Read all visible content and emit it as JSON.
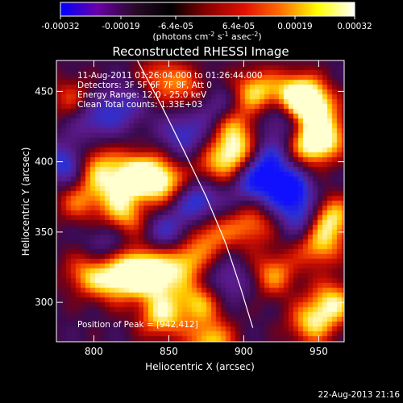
{
  "colorbar": {
    "ticks": [
      "-0.00032",
      "-0.00019",
      "-6.4e-05",
      "6.4e-05",
      "0.00019",
      "0.00032"
    ],
    "stops": [
      "#0000ff",
      "#6a00aa",
      "#2a0a2a",
      "#000000",
      "#8a0000",
      "#e01000",
      "#ff7000",
      "#ffff00",
      "#ffffff"
    ]
  },
  "chart_data": {
    "type": "heatmap",
    "title": "Reconstructed RHESSI Image",
    "xlabel": "Heliocentric X (arcsec)",
    "ylabel": "Heliocentric Y (arcsec)",
    "xlim": [
      775,
      967
    ],
    "ylim": [
      272,
      472
    ],
    "xticks": [
      800,
      850,
      900,
      950
    ],
    "yticks": [
      300,
      350,
      400,
      450
    ],
    "colorbar_range": [
      -0.00032,
      0.00032
    ],
    "peak": [
      942,
      412
    ],
    "limb_curve": [
      [
        829,
        472
      ],
      [
        845,
        440
      ],
      [
        860,
        408
      ],
      [
        875,
        375
      ],
      [
        888,
        342
      ],
      [
        898,
        310
      ],
      [
        906,
        282
      ]
    ],
    "blobs": [
      {
        "x": 800,
        "y": 397,
        "v": 0.8
      },
      {
        "x": 815,
        "y": 380,
        "v": 0.6
      },
      {
        "x": 830,
        "y": 392,
        "v": 0.9
      },
      {
        "x": 846,
        "y": 385,
        "v": 0.85
      },
      {
        "x": 820,
        "y": 360,
        "v": 0.7
      },
      {
        "x": 830,
        "y": 325,
        "v": 0.9
      },
      {
        "x": 815,
        "y": 315,
        "v": 0.8
      },
      {
        "x": 795,
        "y": 320,
        "v": 0.6
      },
      {
        "x": 843,
        "y": 315,
        "v": 0.7
      },
      {
        "x": 860,
        "y": 330,
        "v": 0.75
      },
      {
        "x": 845,
        "y": 290,
        "v": 0.8
      },
      {
        "x": 870,
        "y": 300,
        "v": 0.7
      },
      {
        "x": 878,
        "y": 348,
        "v": 0.6
      },
      {
        "x": 895,
        "y": 405,
        "v": 0.9
      },
      {
        "x": 893,
        "y": 425,
        "v": 0.6
      },
      {
        "x": 908,
        "y": 450,
        "v": 0.8
      },
      {
        "x": 935,
        "y": 448,
        "v": 0.85
      },
      {
        "x": 945,
        "y": 440,
        "v": 1.0
      },
      {
        "x": 956,
        "y": 420,
        "v": 0.6
      },
      {
        "x": 945,
        "y": 412,
        "v": 0.9
      },
      {
        "x": 957,
        "y": 360,
        "v": 0.95
      },
      {
        "x": 950,
        "y": 340,
        "v": 0.7
      },
      {
        "x": 960,
        "y": 300,
        "v": 0.8
      },
      {
        "x": 945,
        "y": 285,
        "v": 0.75
      },
      {
        "x": 920,
        "y": 320,
        "v": 0.65
      },
      {
        "x": 905,
        "y": 355,
        "v": 0.6
      },
      {
        "x": 878,
        "y": 272,
        "v": 0.8
      },
      {
        "x": 865,
        "y": 450,
        "v": 0.5
      },
      {
        "x": 845,
        "y": 460,
        "v": 0.55
      },
      {
        "x": 785,
        "y": 445,
        "v": 0.45
      },
      {
        "x": 790,
        "y": 372,
        "v": 0.55
      },
      {
        "x": 880,
        "y": 395,
        "v": 0.45
      },
      {
        "x": 930,
        "y": 380,
        "v": -0.9
      },
      {
        "x": 915,
        "y": 400,
        "v": -0.7
      },
      {
        "x": 940,
        "y": 360,
        "v": -0.65
      },
      {
        "x": 905,
        "y": 385,
        "v": -0.6
      },
      {
        "x": 870,
        "y": 372,
        "v": -0.7
      },
      {
        "x": 860,
        "y": 420,
        "v": -0.55
      },
      {
        "x": 880,
        "y": 440,
        "v": -0.5
      },
      {
        "x": 783,
        "y": 398,
        "v": -0.8
      },
      {
        "x": 800,
        "y": 430,
        "v": -0.5
      },
      {
        "x": 850,
        "y": 350,
        "v": -0.55
      },
      {
        "x": 925,
        "y": 430,
        "v": -0.5
      },
      {
        "x": 820,
        "y": 440,
        "v": -0.45
      },
      {
        "x": 810,
        "y": 345,
        "v": -0.4
      },
      {
        "x": 890,
        "y": 315,
        "v": -0.45
      }
    ]
  },
  "annotations": {
    "time_range": "11-Aug-2011 01:26:04.000 to 01:26:44.000",
    "detectors": "Detectors: 3F 5F 6F 7F 8F, Att 0",
    "energy_range": "Energy Range: 12.0 - 25.0 keV",
    "clean": "Clean     Total counts: 1.33E+03",
    "peak": "Position of Peak = [942,412]"
  },
  "footer_date": "22-Aug-2013 21:16"
}
